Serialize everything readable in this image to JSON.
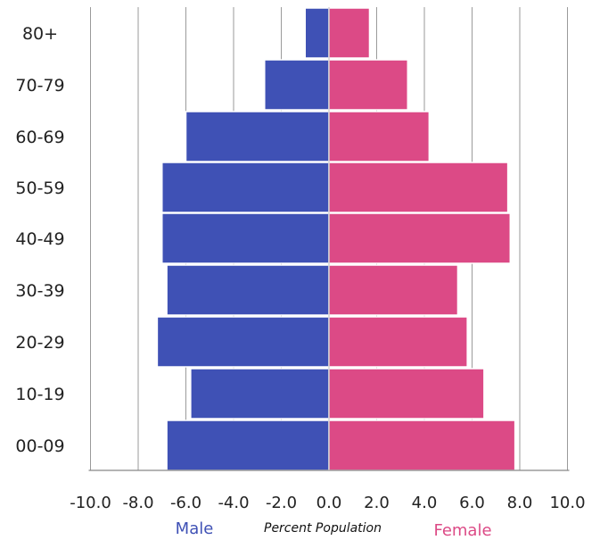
{
  "chart_data": {
    "type": "bar",
    "orientation": "horizontal",
    "categories": [
      "00-09",
      "10-19",
      "20-29",
      "30-39",
      "40-49",
      "50-59",
      "60-69",
      "70-79",
      "80+"
    ],
    "series": [
      {
        "name": "Male",
        "values": [
          -6.8,
          -5.8,
          -7.2,
          -6.8,
          -7.0,
          -7.0,
          -6.0,
          -2.7,
          -1.0
        ],
        "color": "#3f51b5"
      },
      {
        "name": "Female",
        "values": [
          7.8,
          6.5,
          5.8,
          5.4,
          7.6,
          7.5,
          4.2,
          3.3,
          1.7
        ],
        "color": "#dc4a86"
      }
    ],
    "xticks": [
      "-10.0",
      "-8.0",
      "-6.0",
      "-4.0",
      "-2.0",
      "0.0",
      "2.0",
      "4.0",
      "6.0",
      "8.0",
      "10.0"
    ],
    "xlim": [
      -10,
      10
    ],
    "xlabel": "Percent Population",
    "grid": true,
    "legend_position": "bottom"
  }
}
